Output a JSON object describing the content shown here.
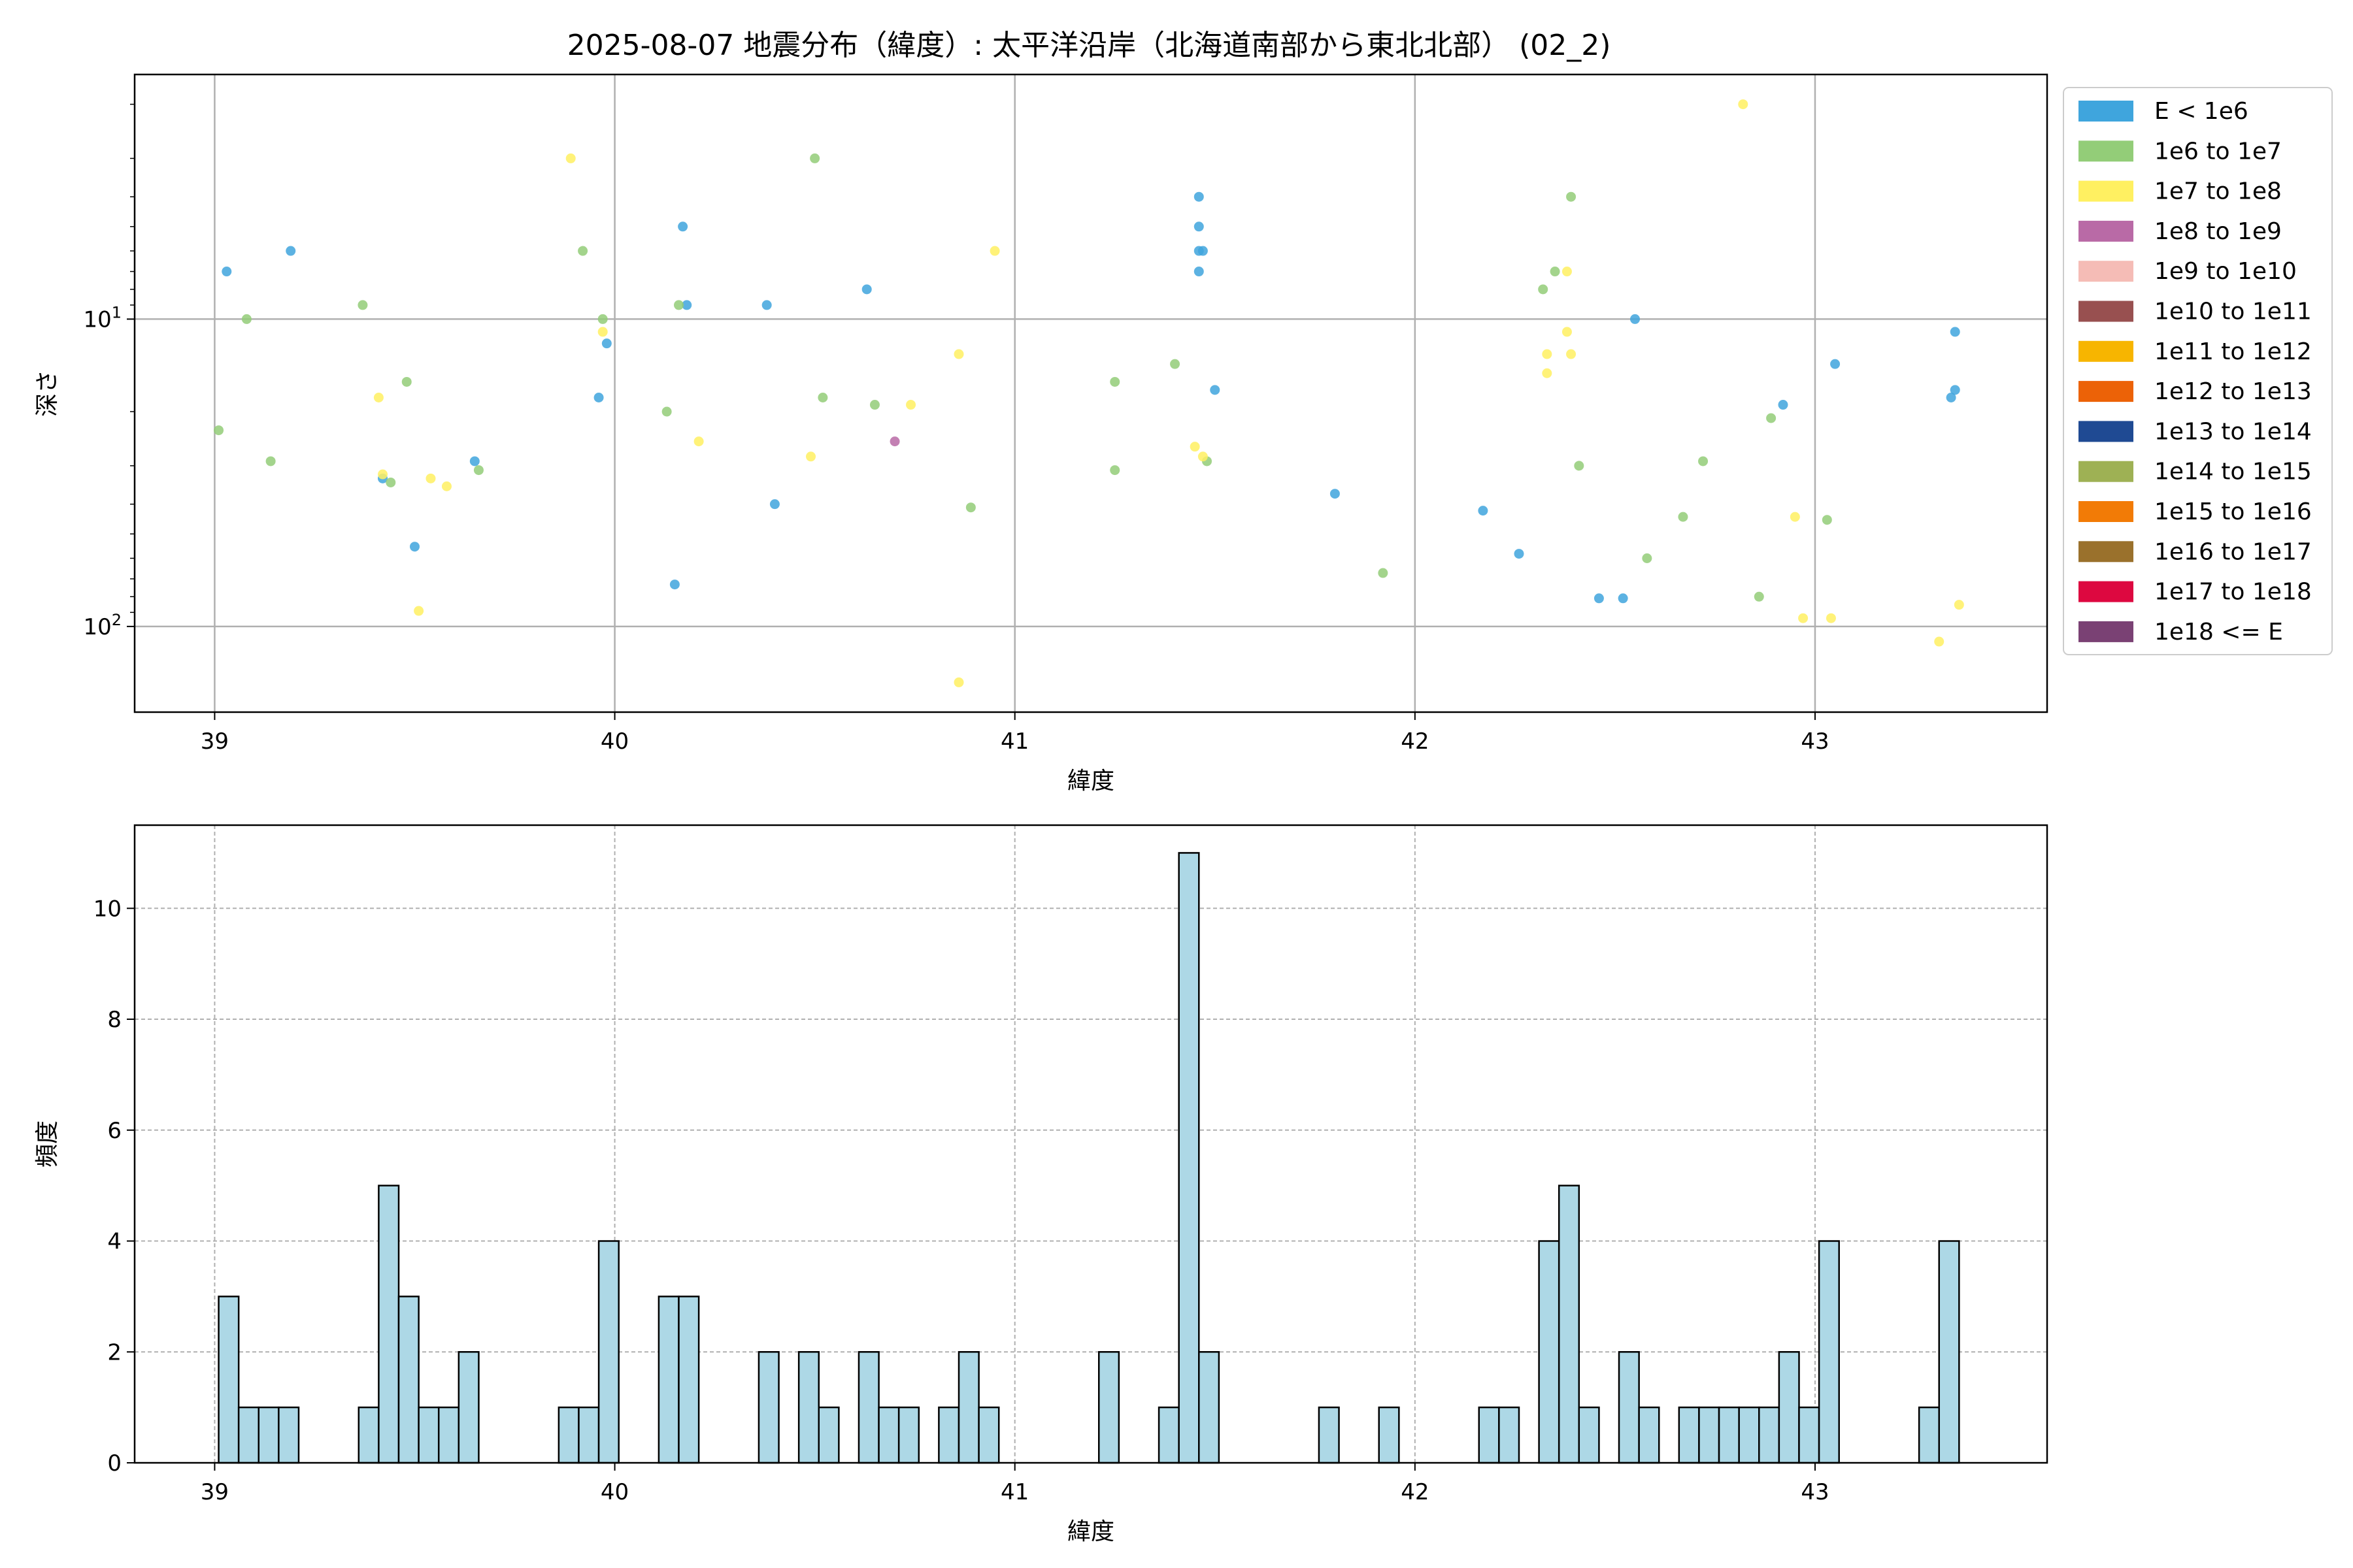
{
  "chart_data": [
    {
      "type": "scatter",
      "title": "2025-08-07 地震分布（緯度）: 太平洋沿岸（北海道南部から東北北部） (02_2)",
      "xlabel": "緯度",
      "ylabel": "深さ",
      "xlim": [
        38.8,
        43.58
      ],
      "ylim": [
        190,
        1.6
      ],
      "y_scale": "log",
      "y_inverted": true,
      "x_ticks": [
        "39",
        "40",
        "41",
        "42",
        "43"
      ],
      "y_ticks": [
        "10^1",
        "10^2"
      ],
      "grid": true,
      "legend_placement": "outside-right",
      "legend": [
        {
          "label": "E < 1e6",
          "color": "#3fa5dd"
        },
        {
          "label": "1e6 to 1e7",
          "color": "#93cd78"
        },
        {
          "label": "1e7 to 1e8",
          "color": "#fff061"
        },
        {
          "label": "1e8 to 1e9",
          "color": "#b96aa6"
        },
        {
          "label": "1e9 to 1e10",
          "color": "#f5bcb6"
        },
        {
          "label": "1e10 to 1e11",
          "color": "#985050"
        },
        {
          "label": "1e11 to 1e12",
          "color": "#f7b500"
        },
        {
          "label": "1e12 to 1e13",
          "color": "#ec6207"
        },
        {
          "label": "1e13 to 1e14",
          "color": "#1f4a93"
        },
        {
          "label": "1e14 to 1e15",
          "color": "#9eb154"
        },
        {
          "label": "1e15 to 1e16",
          "color": "#f27b06"
        },
        {
          "label": "1e16 to 1e17",
          "color": "#9a712c"
        },
        {
          "label": "1e17 to 1e18",
          "color": "#dd0840"
        },
        {
          "label": "1e18 <= E",
          "color": "#7a4174"
        }
      ],
      "series": [
        {
          "color": "#3fa5dd",
          "points": [
            [
              39.03,
              7
            ],
            [
              39.19,
              6
            ],
            [
              39.42,
              33
            ],
            [
              39.5,
              55
            ],
            [
              39.65,
              29
            ],
            [
              39.96,
              18
            ],
            [
              39.98,
              12
            ],
            [
              40.15,
              73
            ],
            [
              40.17,
              5
            ],
            [
              40.18,
              9
            ],
            [
              40.38,
              9
            ],
            [
              40.4,
              40
            ],
            [
              40.63,
              8
            ],
            [
              41.46,
              4
            ],
            [
              41.46,
              5
            ],
            [
              41.46,
              6
            ],
            [
              41.47,
              6
            ],
            [
              41.46,
              7
            ],
            [
              41.5,
              17
            ],
            [
              41.8,
              37
            ],
            [
              42.17,
              42
            ],
            [
              42.26,
              58
            ],
            [
              42.46,
              81
            ],
            [
              42.52,
              81
            ],
            [
              42.55,
              10
            ],
            [
              42.92,
              19
            ],
            [
              43.05,
              14
            ],
            [
              43.34,
              18
            ],
            [
              43.35,
              17
            ],
            [
              43.35,
              11
            ]
          ]
        },
        {
          "color": "#93cd78",
          "points": [
            [
              39.01,
              23
            ],
            [
              39.08,
              10
            ],
            [
              39.14,
              29
            ],
            [
              39.37,
              9
            ],
            [
              39.44,
              34
            ],
            [
              39.48,
              16
            ],
            [
              39.66,
              31
            ],
            [
              39.92,
              6
            ],
            [
              39.97,
              10
            ],
            [
              40.13,
              20
            ],
            [
              40.16,
              9
            ],
            [
              40.5,
              3
            ],
            [
              40.52,
              18
            ],
            [
              40.65,
              19
            ],
            [
              40.89,
              41
            ],
            [
              41.25,
              16
            ],
            [
              41.25,
              31
            ],
            [
              41.4,
              14
            ],
            [
              41.48,
              29
            ],
            [
              41.92,
              67
            ],
            [
              42.32,
              8
            ],
            [
              42.35,
              7
            ],
            [
              42.39,
              4
            ],
            [
              42.41,
              30
            ],
            [
              42.58,
              60
            ],
            [
              42.67,
              44
            ],
            [
              42.72,
              29
            ],
            [
              42.86,
              80
            ],
            [
              42.89,
              21
            ],
            [
              43.03,
              45
            ]
          ]
        },
        {
          "color": "#fff061",
          "points": [
            [
              39.41,
              18
            ],
            [
              39.42,
              32
            ],
            [
              39.51,
              89
            ],
            [
              39.54,
              33
            ],
            [
              39.58,
              35
            ],
            [
              39.89,
              3
            ],
            [
              39.97,
              11
            ],
            [
              40.21,
              25
            ],
            [
              40.49,
              28
            ],
            [
              40.74,
              19
            ],
            [
              40.86,
              13
            ],
            [
              40.86,
              152
            ],
            [
              40.95,
              6
            ],
            [
              41.45,
              26
            ],
            [
              41.47,
              28
            ],
            [
              42.33,
              13
            ],
            [
              42.33,
              15
            ],
            [
              42.38,
              11
            ],
            [
              42.38,
              7
            ],
            [
              42.39,
              13
            ],
            [
              42.82,
              2
            ],
            [
              42.95,
              44
            ],
            [
              42.97,
              94
            ],
            [
              43.04,
              94
            ],
            [
              43.31,
              112
            ],
            [
              43.36,
              85
            ]
          ]
        },
        {
          "color": "#b96aa6",
          "points": [
            [
              40.7,
              25
            ]
          ]
        }
      ]
    },
    {
      "type": "bar",
      "title": "",
      "xlabel": "緯度",
      "ylabel": "頻度",
      "xlim": [
        38.8,
        43.58
      ],
      "ylim": [
        0,
        11.5
      ],
      "x_ticks": [
        "39",
        "40",
        "41",
        "42",
        "43"
      ],
      "y_ticks": [
        "0",
        "2",
        "4",
        "6",
        "8",
        "10"
      ],
      "grid": true,
      "bin_width": 0.05,
      "bin_starts": [
        39.01,
        39.06,
        39.11,
        39.16,
        39.36,
        39.41,
        39.46,
        39.51,
        39.56,
        39.61,
        39.86,
        39.91,
        39.96,
        40.11,
        40.16,
        40.36,
        40.46,
        40.51,
        40.61,
        40.66,
        40.71,
        40.81,
        40.86,
        40.91,
        41.21,
        41.36,
        41.41,
        41.46,
        41.76,
        41.91,
        42.16,
        42.21,
        42.31,
        42.36,
        42.41,
        42.51,
        42.56,
        42.66,
        42.71,
        42.76,
        42.81,
        42.86,
        42.91,
        42.96,
        43.01,
        43.26,
        43.31
      ],
      "values": [
        3,
        1,
        1,
        1,
        1,
        5,
        3,
        1,
        1,
        2,
        1,
        1,
        4,
        3,
        3,
        2,
        2,
        1,
        2,
        1,
        1,
        1,
        2,
        1,
        2,
        1,
        11,
        2,
        1,
        1,
        1,
        1,
        4,
        5,
        1,
        2,
        1,
        1,
        1,
        1,
        1,
        1,
        2,
        1,
        4,
        1,
        4
      ],
      "bar_color": "#add8e6"
    }
  ]
}
